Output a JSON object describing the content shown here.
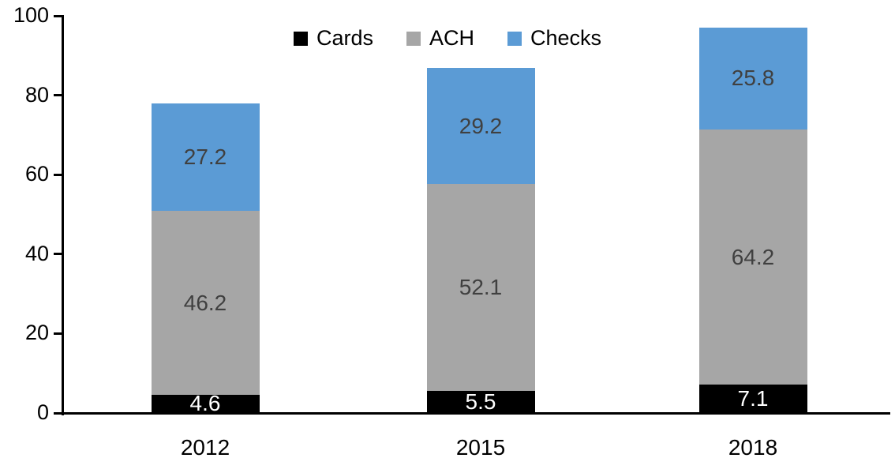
{
  "chart_data": {
    "type": "bar",
    "stacked": true,
    "title": "",
    "xlabel": "",
    "ylabel": "",
    "categories": [
      "2012",
      "2015",
      "2018"
    ],
    "series": [
      {
        "name": "Cards",
        "color": "#000000",
        "label_color": "#FFFFFF",
        "values": [
          4.6,
          5.5,
          7.1
        ]
      },
      {
        "name": "ACH",
        "color": "#A6A6A6",
        "label_color": "#404040",
        "values": [
          46.2,
          52.1,
          64.2
        ]
      },
      {
        "name": "Checks",
        "color": "#5B9BD5",
        "label_color": "#404040",
        "values": [
          27.2,
          29.2,
          25.8
        ]
      }
    ],
    "totals": [
      78.0,
      86.8,
      97.1
    ],
    "ylim": [
      0,
      100
    ],
    "yticks": [
      "0",
      "20",
      "40",
      "60",
      "80",
      "100"
    ],
    "grid": false,
    "data_labels": true,
    "legend_position": "top-center",
    "axis_color": "#000000",
    "background_color": "#FFFFFF"
  }
}
